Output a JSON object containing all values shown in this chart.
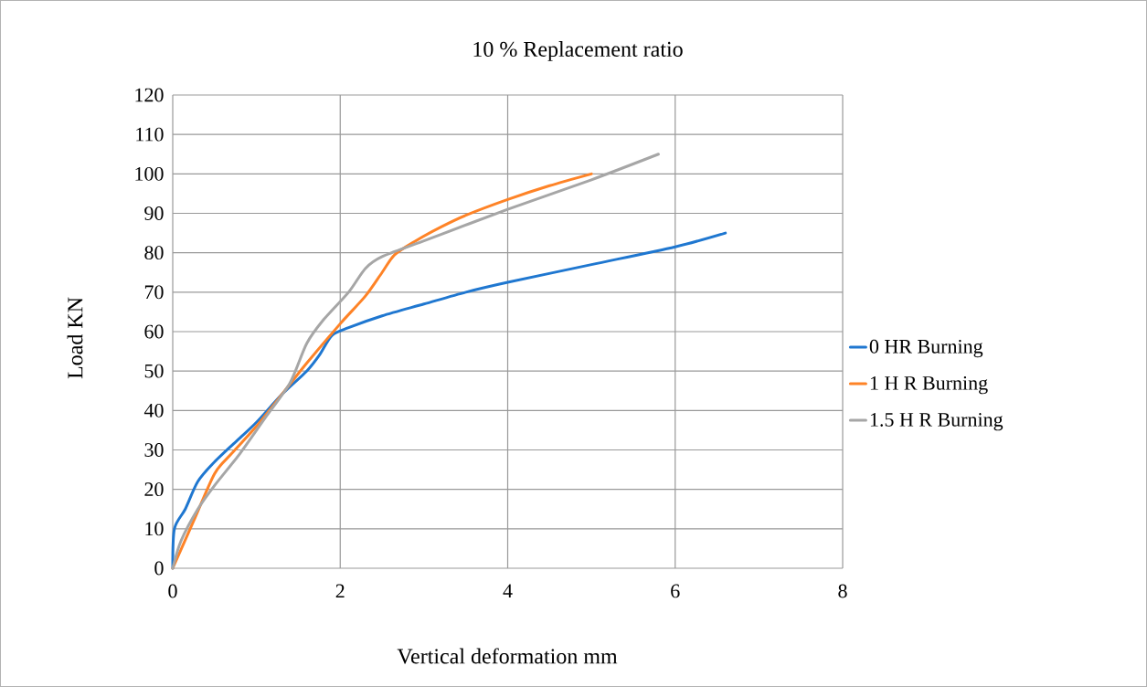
{
  "chart_data": {
    "type": "line",
    "title": "10 % Replacement ratio",
    "xlabel": "Vertical deformation mm",
    "ylabel": "Load KN",
    "xlim": [
      0,
      8
    ],
    "xticks": [
      0,
      2,
      4,
      6,
      8
    ],
    "ylim": [
      0,
      120
    ],
    "yticks": [
      0,
      10,
      20,
      30,
      40,
      50,
      60,
      70,
      80,
      90,
      100,
      110,
      120
    ],
    "grid": true,
    "legend": "right",
    "marker": "none",
    "line_style": "solid",
    "series": [
      {
        "name": "0 HR Burning",
        "color": "#1f77d0",
        "x": [
          0,
          0.02,
          0.15,
          0.3,
          0.5,
          0.8,
          1.0,
          1.3,
          1.6,
          1.75,
          1.9,
          2.1,
          2.5,
          3,
          3.5,
          4,
          5,
          6,
          6.6
        ],
        "values": [
          0,
          10,
          15,
          22,
          27,
          33,
          37,
          44,
          50,
          54,
          59,
          61,
          64,
          67,
          70,
          72.5,
          77,
          81.5,
          85
        ]
      },
      {
        "name": "1 H R Burning",
        "color": "#fe8327",
        "x": [
          0,
          0.25,
          0.5,
          0.7,
          1,
          1.3,
          1.6,
          2.0,
          2.3,
          2.5,
          2.65,
          2.9,
          3.2,
          3.5,
          4,
          4.5,
          5
        ],
        "values": [
          0,
          12,
          24,
          29,
          36,
          44,
          52,
          62,
          69,
          75,
          79.5,
          83,
          86.5,
          89.5,
          93.5,
          97,
          100
        ]
      },
      {
        "name": "1.5 H R Burning",
        "color": "#a6a6a6",
        "x": [
          0,
          0.1,
          0.3,
          0.5,
          0.8,
          1.1,
          1.4,
          1.6,
          1.8,
          2.1,
          2.3,
          2.5,
          3,
          4,
          5,
          5.8
        ],
        "values": [
          0,
          7,
          15,
          21,
          29,
          38,
          47,
          57,
          63,
          70,
          76,
          79,
          83,
          91,
          98.5,
          105
        ]
      }
    ]
  }
}
